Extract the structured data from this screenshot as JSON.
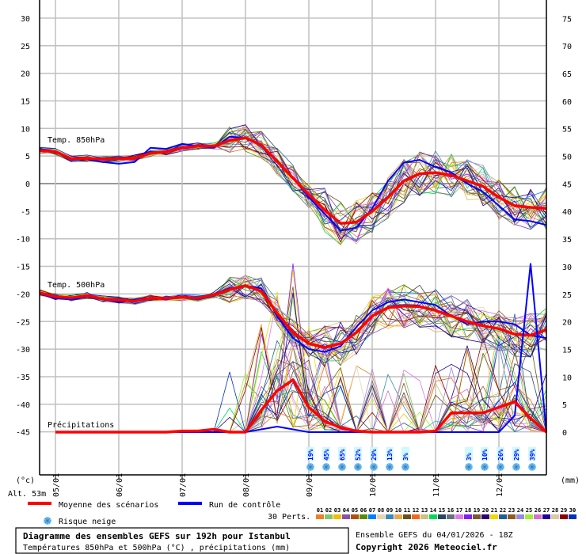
{
  "chart_data": {
    "type": "line",
    "title": "Diagramme des ensembles GEFS sur 192h pour Istanbul",
    "subtitle": "Températures 850hPa et 500hPa (°C) , précipitations (mm)",
    "left_axis": {
      "label": "(°c)",
      "ticks": [
        30,
        25,
        20,
        15,
        10,
        5,
        0,
        -5,
        -10,
        -15,
        -20,
        -25,
        -30,
        -35,
        -40,
        -45
      ],
      "range": [
        -45,
        30
      ]
    },
    "right_axis": {
      "label": "(mm)",
      "ticks": [
        75,
        70,
        65,
        60,
        55,
        50,
        45,
        40,
        35,
        30,
        25,
        20,
        15,
        10,
        5,
        0
      ],
      "range": [
        0,
        75
      ]
    },
    "x_ticks": [
      "05/01",
      "06/01",
      "07/01",
      "08/01",
      "09/01",
      "10/01",
      "11/01",
      "12/01"
    ],
    "x_step_hours": 6,
    "grid": true,
    "panels": [
      {
        "label": "Temp. 850hPa",
        "unit": "°C",
        "series": [
          {
            "name": "Moyenne des scénarios",
            "color": "#ff0000",
            "values": [
              6.0,
              5.8,
              4.5,
              4.6,
              4.4,
              4.5,
              4.6,
              5.5,
              5.8,
              6.5,
              6.8,
              6.8,
              7.8,
              8.3,
              7.0,
              4.0,
              1.0,
              -2.0,
              -4.8,
              -7.2,
              -7.0,
              -5.0,
              -2.5,
              0.5,
              1.8,
              2.0,
              1.5,
              0.5,
              -0.5,
              -2.5,
              -4.0,
              -4.3,
              -4.5
            ]
          },
          {
            "name": "Run de contrôle",
            "color": "#0000ff",
            "values": [
              6.2,
              5.9,
              4.3,
              4.5,
              3.9,
              3.6,
              3.9,
              6.5,
              6.3,
              7.2,
              6.8,
              6.5,
              8.5,
              8.3,
              6.8,
              4.2,
              1.0,
              -2.5,
              -5.5,
              -8.5,
              -8.0,
              -4.5,
              0.5,
              3.8,
              4.3,
              3.0,
              2.0,
              0.0,
              -1.5,
              -4.0,
              -6.5,
              -6.8,
              -7.5
            ]
          }
        ]
      },
      {
        "label": "Temp. 500hPa",
        "unit": "°C",
        "series": [
          {
            "name": "Moyenne des scénarios",
            "color": "#ff0000",
            "values": [
              -19.8,
              -20.5,
              -20.7,
              -20.3,
              -20.9,
              -21.1,
              -21.3,
              -20.8,
              -20.8,
              -20.6,
              -20.8,
              -20.2,
              -19.2,
              -18.5,
              -19.5,
              -23.5,
              -27.0,
              -29.0,
              -29.7,
              -29.0,
              -27.0,
              -24.0,
              -22.5,
              -22.2,
              -22.3,
              -23.0,
              -24.0,
              -25.0,
              -25.8,
              -26.3,
              -27.3,
              -27.5,
              -26.5
            ]
          },
          {
            "name": "Run de contrôle",
            "color": "#0000ff",
            "values": [
              -20.0,
              -20.8,
              -21.0,
              -20.5,
              -21.0,
              -21.5,
              -21.0,
              -20.7,
              -21.0,
              -20.5,
              -21.0,
              -20.4,
              -19.0,
              -18.5,
              -19.0,
              -24.0,
              -28.0,
              -30.0,
              -30.5,
              -29.5,
              -26.0,
              -23.0,
              -21.5,
              -21.0,
              -21.5,
              -22.0,
              -24.0,
              -25.5,
              -25.0,
              -25.0,
              -25.5,
              -27.5,
              -28.0
            ]
          }
        ]
      },
      {
        "label": "Précipitations",
        "unit": "mm",
        "series": [
          {
            "name": "Moyenne des scénarios",
            "color": "#ff0000",
            "values": [
              null,
              0,
              0,
              0,
              0,
              0,
              0,
              0,
              0,
              0.2,
              0.2,
              0.5,
              0,
              0,
              4.0,
              7.5,
              9.5,
              4.5,
              2.0,
              0.8,
              0.2,
              0,
              0,
              0,
              0,
              0.2,
              3.5,
              3.5,
              3.5,
              4.5,
              5.5,
              2.5,
              0
            ]
          },
          {
            "name": "Run de contrôle",
            "color": "#0000ff",
            "values": [
              null,
              0,
              0,
              0,
              0,
              0,
              0,
              0,
              0,
              0,
              0,
              0,
              0,
              0,
              0.5,
              1.0,
              0.5,
              0,
              0,
              0,
              0,
              0,
              0,
              0,
              0,
              0,
              0,
              0,
              0,
              0,
              3.0,
              30.5,
              0
            ]
          }
        ]
      }
    ],
    "snow_risk": [
      {
        "x_index": 16.8,
        "pct": "19%"
      },
      {
        "x_index": 17.8,
        "pct": "45%"
      },
      {
        "x_index": 18.8,
        "pct": "65%"
      },
      {
        "x_index": 19.8,
        "pct": "52%"
      },
      {
        "x_index": 20.8,
        "pct": "29%"
      },
      {
        "x_index": 21.8,
        "pct": "13%"
      },
      {
        "x_index": 22.8,
        "pct": "3%"
      },
      {
        "x_index": 26.8,
        "pct": "3%"
      },
      {
        "x_index": 27.8,
        "pct": "10%"
      },
      {
        "x_index": 28.8,
        "pct": "26%"
      },
      {
        "x_index": 29.8,
        "pct": "29%"
      },
      {
        "x_index": 30.8,
        "pct": "39%"
      }
    ],
    "perturbations": {
      "count_label": "30 Perts.",
      "ids": [
        "01",
        "02",
        "03",
        "04",
        "05",
        "06",
        "07",
        "08",
        "09",
        "10",
        "11",
        "12",
        "13",
        "14",
        "15",
        "16",
        "17",
        "18",
        "19",
        "20",
        "21",
        "22",
        "23",
        "24",
        "25",
        "26",
        "27",
        "28",
        "29",
        "30"
      ],
      "colors": [
        "#e8822c",
        "#88c46a",
        "#f0c000",
        "#8c50a8",
        "#b05010",
        "#5a8a00",
        "#0080ff",
        "#e8d4b0",
        "#3a8ab8",
        "#e8a850",
        "#6a5018",
        "#f06820",
        "#d0c080",
        "#00d860",
        "#284860",
        "#687078",
        "#e078f0",
        "#8020f0",
        "#7a5a30",
        "#300070",
        "#f0d800",
        "#206090",
        "#905a20",
        "#9a88e8",
        "#a0f030",
        "#d870d0",
        "#200098",
        "#e0c8a0",
        "#880000",
        "#0030c0"
      ]
    }
  },
  "labels": {
    "y_left_unit": "(°c)",
    "y_right_unit": "(mm)",
    "altitude": "Alt. 53m",
    "panel_850": "Temp. 850hPa",
    "panel_500": "Temp. 500hPa",
    "panel_precip": "Précipitations"
  },
  "legend": {
    "mean_label": "Moyenne des scénarios",
    "mean_color": "#ff0000",
    "control_label": "Run de contrôle",
    "control_color": "#0000ff",
    "snow_label": "Risque neige",
    "perts_label": "30 Perts."
  },
  "footer": {
    "title": "Diagramme des ensembles GEFS sur 192h pour Istanbul",
    "subtitle": "Températures 850hPa et 500hPa (°C) , précipitations (mm)",
    "run_info": "Ensemble GEFS du 04/01/2026 - 18Z",
    "copyright": "Copyright 2026 Meteociel.fr"
  }
}
